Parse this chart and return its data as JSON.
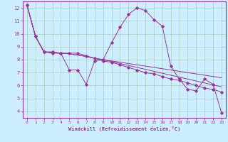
{
  "xlabel": "Windchill (Refroidissement éolien,°C)",
  "bg_color": "#cceeff",
  "grid_color": "#aaccbb",
  "line_color": "#993399",
  "xlim": [
    -0.5,
    23.5
  ],
  "ylim": [
    3.5,
    12.5
  ],
  "xticks": [
    0,
    1,
    2,
    3,
    4,
    5,
    6,
    7,
    8,
    9,
    10,
    11,
    12,
    13,
    14,
    15,
    16,
    17,
    18,
    19,
    20,
    21,
    22,
    23
  ],
  "yticks": [
    4,
    5,
    6,
    7,
    8,
    9,
    10,
    11,
    12
  ],
  "line1_x": [
    0,
    1,
    2,
    3,
    4,
    5,
    6,
    7,
    8,
    9,
    10,
    11,
    12,
    13,
    14,
    15,
    16,
    17,
    18,
    19,
    20,
    21,
    22,
    23
  ],
  "line1_y": [
    12.2,
    9.8,
    8.6,
    8.5,
    8.5,
    7.2,
    7.2,
    6.1,
    7.9,
    8.0,
    9.3,
    10.5,
    11.5,
    12.0,
    11.8,
    11.1,
    10.6,
    7.5,
    6.5,
    5.7,
    5.6,
    6.5,
    6.1,
    3.9
  ],
  "line2_x": [
    0,
    1,
    2,
    3,
    4,
    5,
    6,
    7,
    8,
    9,
    10,
    11,
    12,
    13,
    14,
    15,
    16,
    17,
    18,
    19,
    20,
    21,
    22,
    23
  ],
  "line2_y": [
    12.2,
    9.8,
    8.6,
    8.6,
    8.5,
    8.5,
    8.5,
    8.3,
    8.1,
    7.9,
    7.8,
    7.6,
    7.4,
    7.2,
    7.0,
    6.9,
    6.7,
    6.5,
    6.4,
    6.2,
    6.0,
    5.8,
    5.7,
    5.5
  ],
  "line3_x": [
    0,
    1,
    2,
    3,
    4,
    5,
    6,
    7,
    8,
    9,
    10,
    11,
    12,
    13,
    14,
    15,
    16,
    17,
    18,
    19,
    20,
    21,
    22,
    23
  ],
  "line3_y": [
    12.2,
    9.8,
    8.6,
    8.55,
    8.5,
    8.45,
    8.35,
    8.25,
    8.1,
    8.0,
    7.9,
    7.8,
    7.7,
    7.6,
    7.5,
    7.4,
    7.3,
    7.2,
    7.1,
    7.0,
    6.9,
    6.8,
    6.7,
    6.6
  ],
  "line4_x": [
    0,
    1,
    2,
    3,
    4,
    5,
    6,
    7,
    8,
    9,
    10,
    11,
    12,
    13,
    14,
    15,
    16,
    17,
    18,
    19,
    20,
    21,
    22,
    23
  ],
  "line4_y": [
    12.2,
    9.8,
    8.6,
    8.55,
    8.5,
    8.45,
    8.35,
    8.25,
    8.1,
    8.0,
    7.85,
    7.7,
    7.55,
    7.4,
    7.25,
    7.1,
    6.95,
    6.8,
    6.65,
    6.5,
    6.35,
    6.2,
    6.05,
    5.9
  ]
}
